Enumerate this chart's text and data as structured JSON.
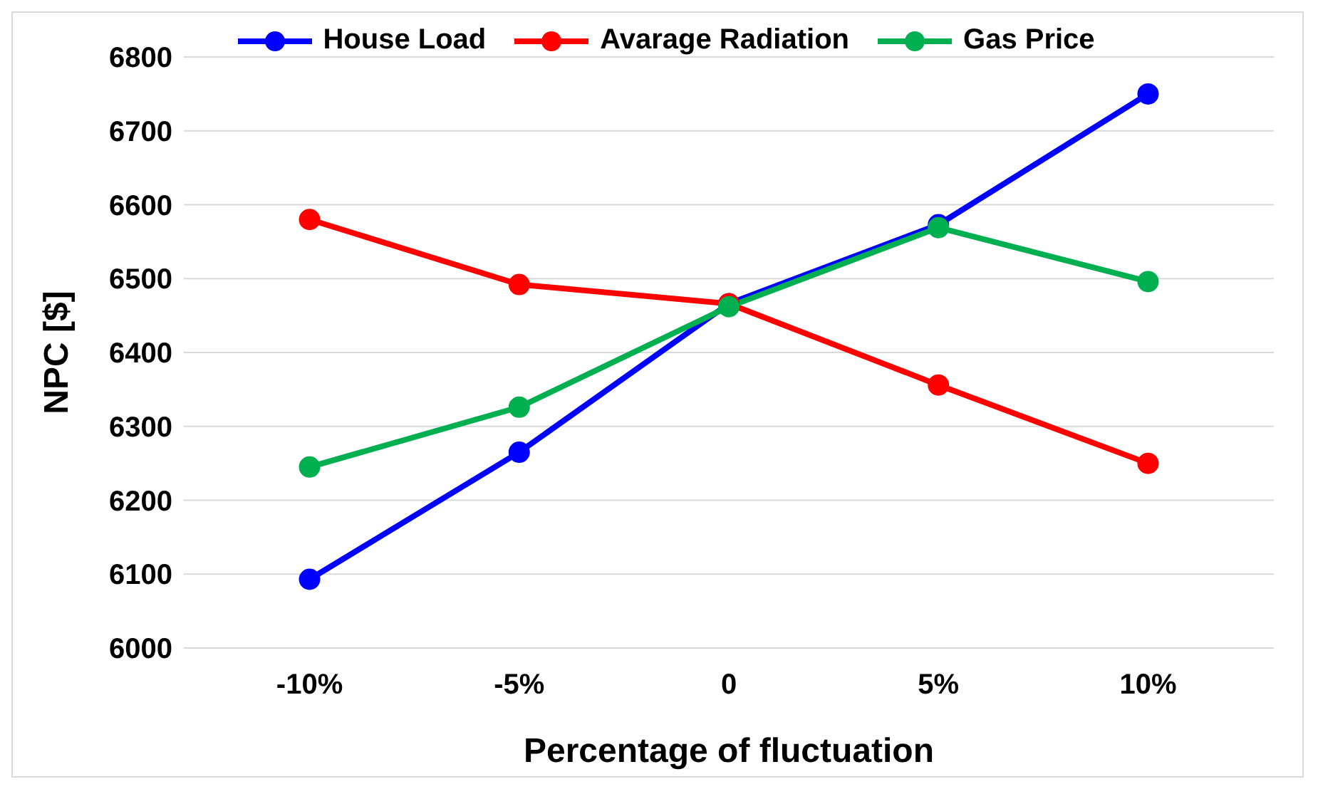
{
  "chart_data": {
    "type": "line",
    "xlabel": "Percentage  of fluctuation",
    "ylabel": "NPC [$]",
    "categories": [
      "-10%",
      "-5%",
      "0",
      "5%",
      "10%"
    ],
    "series": [
      {
        "name": "House Load",
        "color": "#0000ff",
        "values": [
          6093,
          6265,
          6466,
          6573,
          6750
        ]
      },
      {
        "name": "Avarage Radiation",
        "color": "#ff0000",
        "values": [
          6580,
          6492,
          6466,
          6356,
          6250
        ]
      },
      {
        "name": "Gas Price",
        "color": "#00b050",
        "values": [
          6245,
          6326,
          6462,
          6569,
          6496
        ]
      }
    ],
    "ylim": [
      6000,
      6800
    ],
    "yticks": [
      6000,
      6100,
      6200,
      6300,
      6400,
      6500,
      6600,
      6700,
      6800
    ],
    "grid": "y",
    "legend": "top",
    "marker": "circle",
    "line_style": "solid"
  }
}
